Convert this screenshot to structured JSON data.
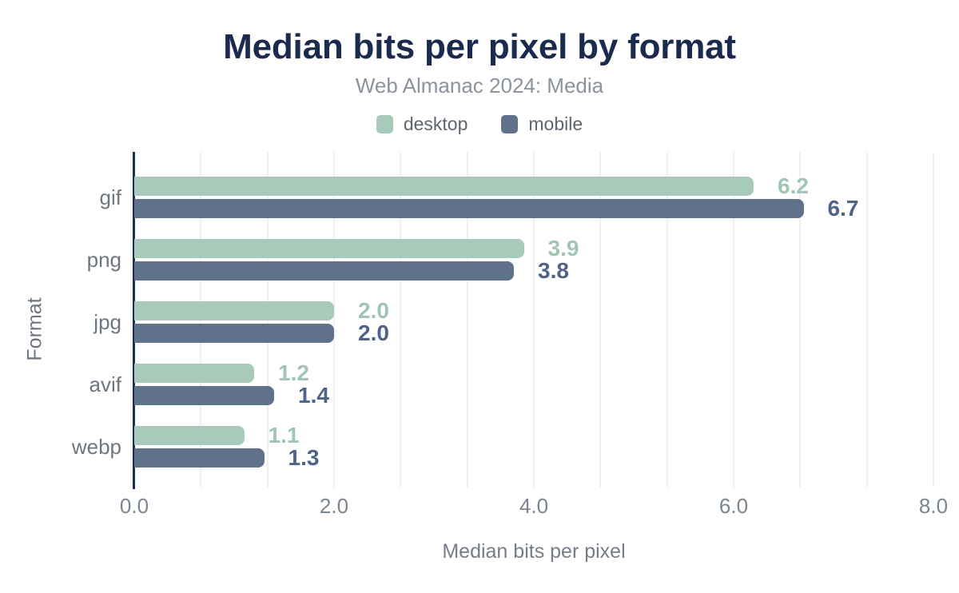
{
  "chart_data": {
    "type": "bar",
    "orientation": "horizontal",
    "title": "Median bits per pixel by format",
    "subtitle": "Web Almanac 2024: Media",
    "xlabel": "Median bits per pixel",
    "ylabel": "Format",
    "categories": [
      "gif",
      "png",
      "jpg",
      "avif",
      "webp"
    ],
    "series": [
      {
        "name": "desktop",
        "values": [
          6.2,
          3.9,
          2.0,
          1.2,
          1.1
        ],
        "color": "#a8cabb",
        "label_color": "#a0c5b3"
      },
      {
        "name": "mobile",
        "values": [
          6.7,
          3.8,
          2.0,
          1.4,
          1.3
        ],
        "color": "#60718c",
        "label_color": "#4f6388"
      }
    ],
    "xlim": [
      0,
      8
    ],
    "xtick_values": [
      0,
      2,
      4,
      6,
      8
    ],
    "xtick_labels": [
      "0.0",
      "2.0",
      "4.0",
      "6.0",
      "8.0"
    ],
    "grid": {
      "on": true,
      "minor_interval": 0.6667,
      "color": "#f0f0f2"
    },
    "legend_position": "top",
    "value_labels": "end-of-bar, one decimal",
    "colors": {
      "title": "#1b2b4d",
      "axis_line": "#1e2d50",
      "category_text": "#6e7781",
      "tick_text": "#7b8590",
      "subtitle_text": "#8b939d",
      "legend_text": "#5d6670",
      "background": "#ffffff"
    }
  }
}
